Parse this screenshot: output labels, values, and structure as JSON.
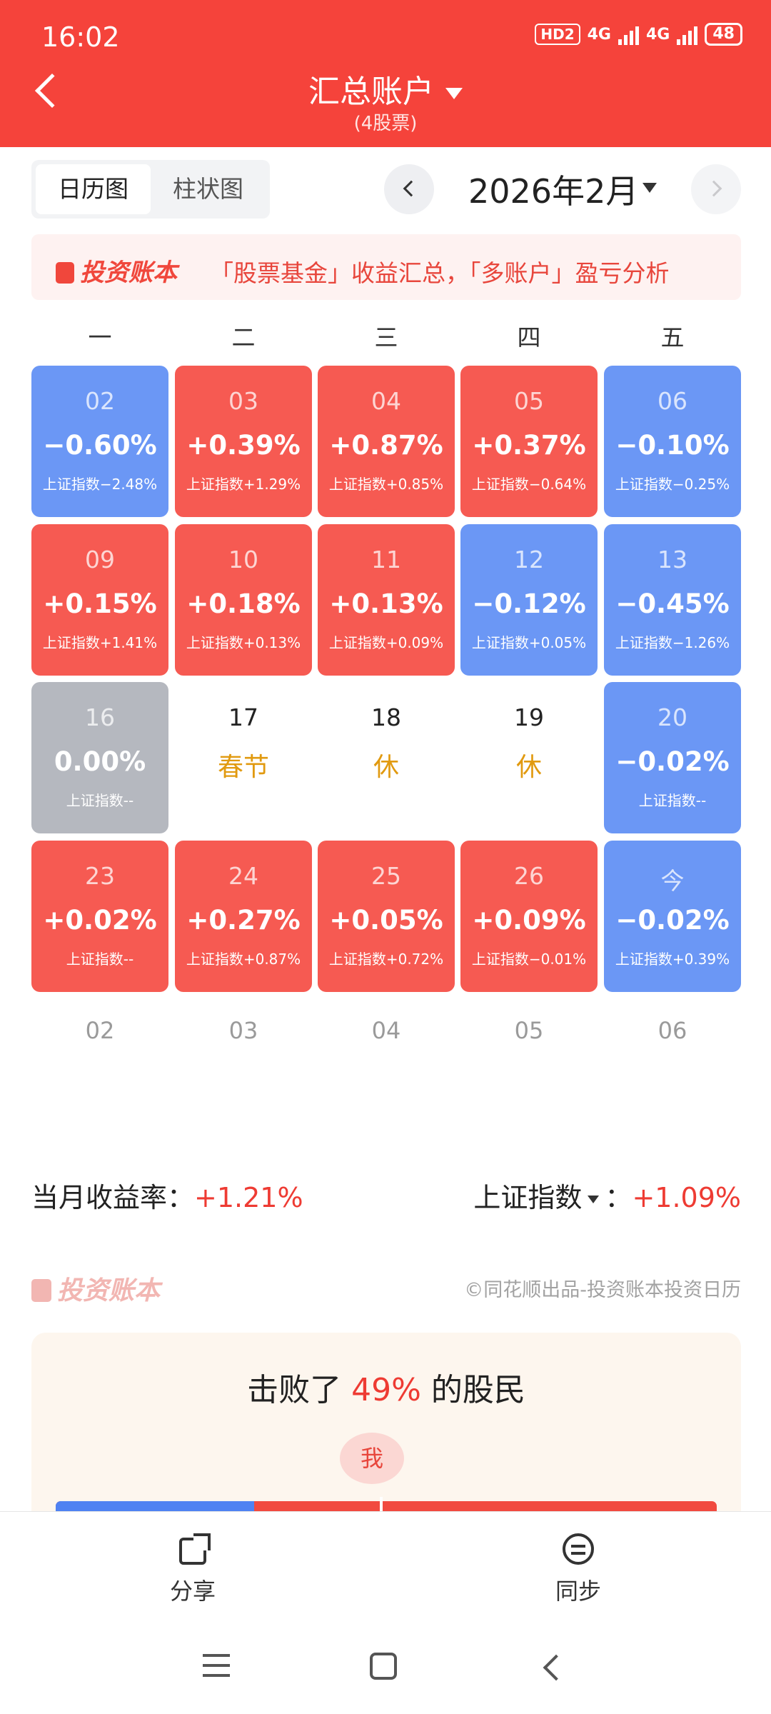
{
  "status": {
    "time": "16:02",
    "hd": "HD2",
    "net1": "4G",
    "net2": "4G",
    "battery": "48"
  },
  "header": {
    "title": "汇总账户",
    "subtitle": "(4股票)"
  },
  "toolbar": {
    "views": [
      "日历图",
      "柱状图"
    ],
    "active_view": "日历图",
    "month": "2026年2月"
  },
  "banner": {
    "logo": "投资账本",
    "text": "「股票基金」收益汇总，「多账户」盈亏分析"
  },
  "weekdays": [
    "一",
    "二",
    "三",
    "四",
    "五"
  ],
  "calendar": [
    [
      {
        "day": "02",
        "pct": "−0.60%",
        "index": "上证指数−2.48%",
        "state": "down"
      },
      {
        "day": "03",
        "pct": "+0.39%",
        "index": "上证指数+1.29%",
        "state": "up"
      },
      {
        "day": "04",
        "pct": "+0.87%",
        "index": "上证指数+0.85%",
        "state": "up"
      },
      {
        "day": "05",
        "pct": "+0.37%",
        "index": "上证指数−0.64%",
        "state": "up"
      },
      {
        "day": "06",
        "pct": "−0.10%",
        "index": "上证指数−0.25%",
        "state": "down"
      }
    ],
    [
      {
        "day": "09",
        "pct": "+0.15%",
        "index": "上证指数+1.41%",
        "state": "up"
      },
      {
        "day": "10",
        "pct": "+0.18%",
        "index": "上证指数+0.13%",
        "state": "up"
      },
      {
        "day": "11",
        "pct": "+0.13%",
        "index": "上证指数+0.09%",
        "state": "up"
      },
      {
        "day": "12",
        "pct": "−0.12%",
        "index": "上证指数+0.05%",
        "state": "down"
      },
      {
        "day": "13",
        "pct": "−0.45%",
        "index": "上证指数−1.26%",
        "state": "down"
      }
    ],
    [
      {
        "day": "16",
        "pct": "0.00%",
        "index": "上证指数--",
        "state": "flat"
      },
      {
        "day": "17",
        "pct": "春节",
        "index": "",
        "state": "plain"
      },
      {
        "day": "18",
        "pct": "休",
        "index": "",
        "state": "plain"
      },
      {
        "day": "19",
        "pct": "休",
        "index": "",
        "state": "plain"
      },
      {
        "day": "20",
        "pct": "−0.02%",
        "index": "上证指数--",
        "state": "down"
      }
    ],
    [
      {
        "day": "23",
        "pct": "+0.02%",
        "index": "上证指数--",
        "state": "up"
      },
      {
        "day": "24",
        "pct": "+0.27%",
        "index": "上证指数+0.87%",
        "state": "up"
      },
      {
        "day": "25",
        "pct": "+0.05%",
        "index": "上证指数+0.72%",
        "state": "up"
      },
      {
        "day": "26",
        "pct": "+0.09%",
        "index": "上证指数−0.01%",
        "state": "up"
      },
      {
        "day": "今",
        "pct": "−0.02%",
        "index": "上证指数+0.39%",
        "state": "down"
      }
    ]
  ],
  "next_month_days": [
    "02",
    "03",
    "04",
    "05",
    "06"
  ],
  "summary": {
    "month_label": "当月收益率：",
    "month_value": "+1.21%",
    "index_label": "上证指数",
    "index_sep": "：",
    "index_value": "+1.09%"
  },
  "watermark": {
    "logo": "投资账本",
    "credit": "©同花顺出品-投资账本投资日历"
  },
  "beat": {
    "prefix": "击败了 ",
    "value": "49%",
    "suffix": " 的股民",
    "me": "我",
    "blue_fraction": 0.3,
    "marker_fraction": 0.49
  },
  "bottom_nav": {
    "share": "分享",
    "sync": "同步"
  },
  "colors": {
    "header": "#f5433b",
    "up": "#f65a52",
    "down": "#6b97f5",
    "flat": "#b5b8bf",
    "accent": "#ee3b33"
  }
}
